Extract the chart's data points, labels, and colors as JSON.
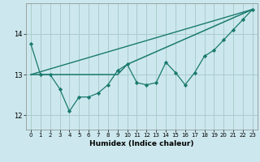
{
  "xlabel": "Humidex (Indice chaleur)",
  "ylabel": "",
  "bg_color": "#cce8ee",
  "grid_color": "#aacccc",
  "line_color": "#1a7a6e",
  "xlim": [
    -0.5,
    23.5
  ],
  "ylim": [
    11.65,
    14.75
  ],
  "yticks": [
    12,
    13,
    14
  ],
  "xticks": [
    0,
    1,
    2,
    3,
    4,
    5,
    6,
    7,
    8,
    9,
    10,
    11,
    12,
    13,
    14,
    15,
    16,
    17,
    18,
    19,
    20,
    21,
    22,
    23
  ],
  "series1_x": [
    0,
    1,
    2,
    3,
    4,
    5,
    6,
    7,
    8,
    9,
    10,
    11,
    12,
    13,
    14,
    15,
    16,
    17,
    18,
    19,
    20,
    21,
    22,
    23
  ],
  "series1_y": [
    13.75,
    13.0,
    13.0,
    12.65,
    12.1,
    12.45,
    12.45,
    12.55,
    12.75,
    13.1,
    13.25,
    12.8,
    12.75,
    12.8,
    13.3,
    13.05,
    12.75,
    13.05,
    13.45,
    13.6,
    13.85,
    14.1,
    14.35,
    14.6
  ],
  "series2_x": [
    0,
    1,
    9,
    10,
    23
  ],
  "series2_y": [
    13.0,
    13.0,
    13.0,
    13.25,
    14.6
  ],
  "series3_x": [
    0,
    23
  ],
  "series3_y": [
    13.0,
    14.6
  ]
}
